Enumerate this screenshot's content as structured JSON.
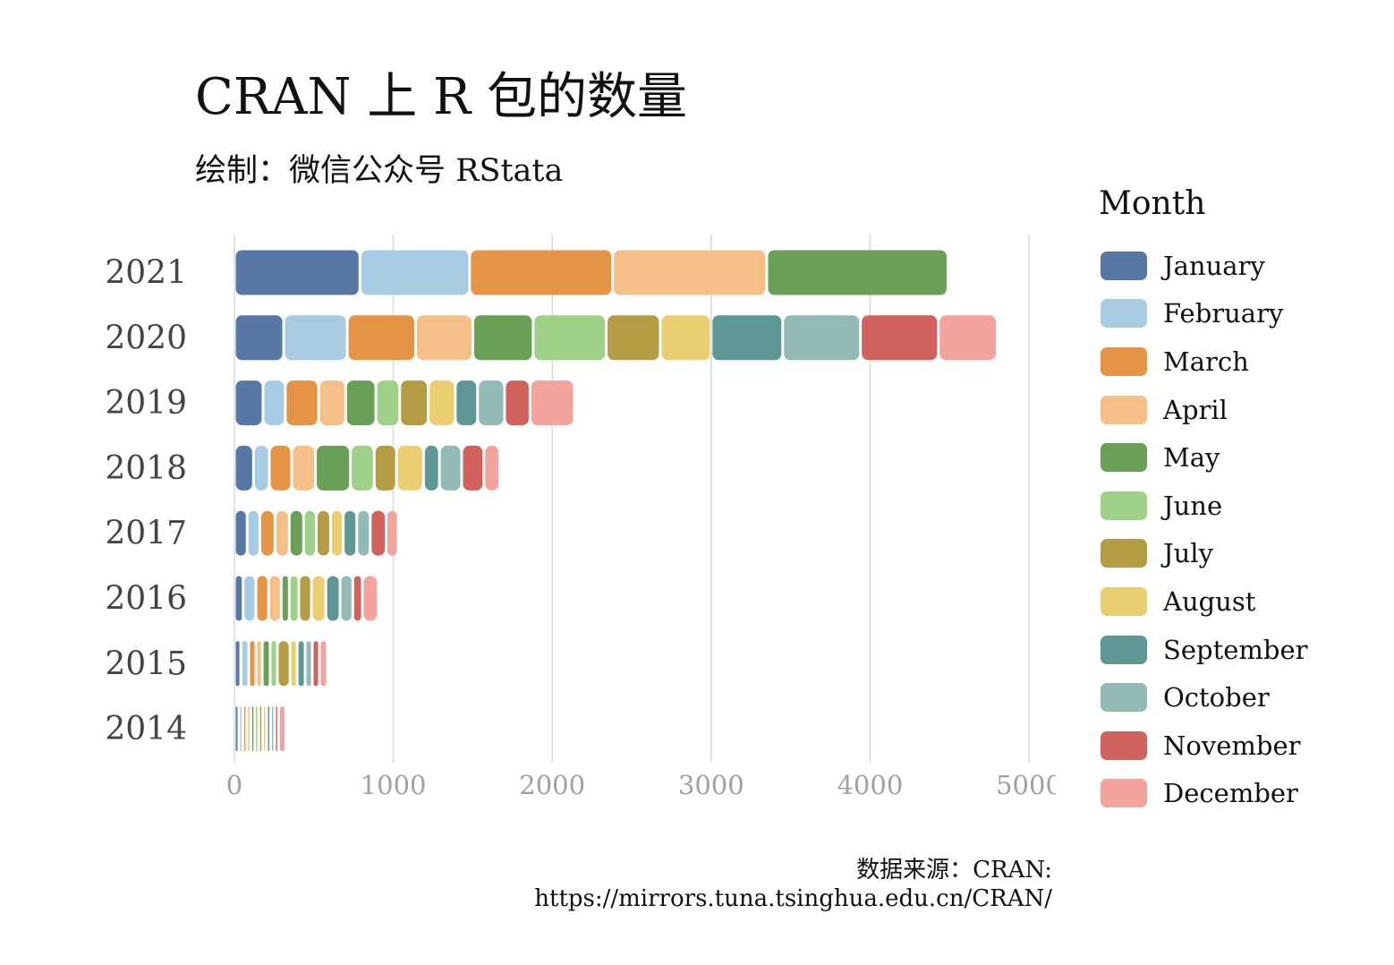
{
  "chart_data": {
    "type": "bar",
    "orientation": "horizontal",
    "stacked": true,
    "title": "CRAN 上 R 包的数量",
    "subtitle": "绘制：微信公众号 RStata",
    "caption": [
      "数据来源：CRAN:",
      "https://mirrors.tuna.tsinghua.edu.cn/CRAN/"
    ],
    "categories": [
      "2021",
      "2020",
      "2019",
      "2018",
      "2017",
      "2016",
      "2015",
      "2014"
    ],
    "xlim": [
      0,
      5000
    ],
    "x_ticks": [
      "0",
      "1000",
      "2000",
      "3000",
      "4000",
      "5000"
    ],
    "grid": "vertical",
    "legend": {
      "title": "Month",
      "position": "right"
    },
    "series": [
      {
        "name": "January",
        "color": "#5778a4",
        "values": [
          790,
          310,
          180,
          120,
          80,
          55,
          40,
          28
        ]
      },
      {
        "name": "February",
        "color": "#a8cbe4",
        "values": [
          690,
          400,
          140,
          100,
          80,
          80,
          50,
          25
        ]
      },
      {
        "name": "March",
        "color": "#e49444",
        "values": [
          900,
          430,
          210,
          140,
          95,
          80,
          45,
          25
        ]
      },
      {
        "name": "April",
        "color": "#f4c087",
        "values": [
          970,
          360,
          170,
          150,
          90,
          80,
          40,
          25
        ]
      },
      {
        "name": "May",
        "color": "#6a9f58",
        "values": [
          1140,
          380,
          190,
          220,
          90,
          50,
          50,
          25
        ]
      },
      {
        "name": "June",
        "color": "#9ed089",
        "values": [
          0,
          460,
          150,
          150,
          80,
          60,
          45,
          25
        ]
      },
      {
        "name": "July",
        "color": "#b39c44",
        "values": [
          0,
          340,
          180,
          140,
          90,
          80,
          80,
          25
        ]
      },
      {
        "name": "August",
        "color": "#ebcd72",
        "values": [
          0,
          320,
          170,
          170,
          80,
          90,
          45,
          25
        ]
      },
      {
        "name": "September",
        "color": "#5e9794",
        "values": [
          0,
          450,
          140,
          100,
          85,
          90,
          50,
          25
        ]
      },
      {
        "name": "October",
        "color": "#94bab6",
        "values": [
          0,
          490,
          170,
          140,
          85,
          80,
          45,
          25
        ]
      },
      {
        "name": "November",
        "color": "#d1615d",
        "values": [
          0,
          490,
          160,
          140,
          100,
          60,
          45,
          25
        ]
      },
      {
        "name": "December",
        "color": "#f2a39d",
        "values": [
          0,
          370,
          280,
          100,
          75,
          100,
          50,
          45
        ]
      }
    ]
  }
}
